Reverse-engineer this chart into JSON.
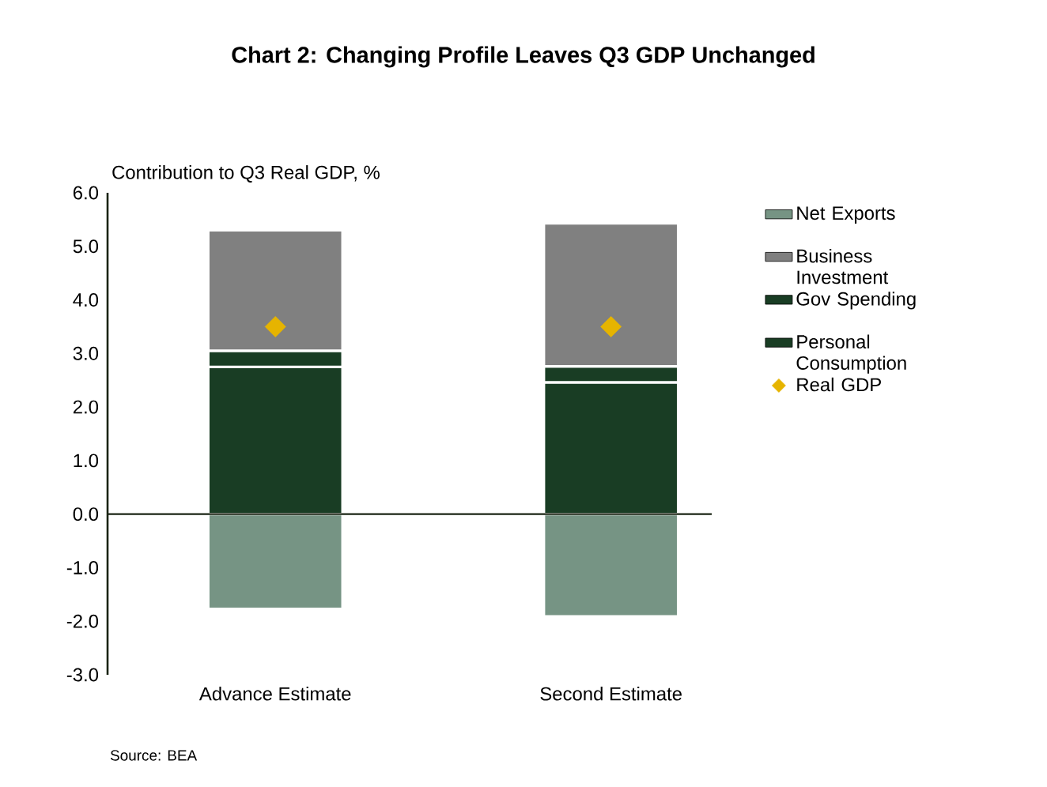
{
  "chart_data": {
    "type": "bar",
    "stacked": true,
    "title": "Chart 2: Changing Profile Leaves Q3 GDP Unchanged",
    "ylabel": "Contribution to  Q3 Real GDP, %",
    "categories": [
      "Advance Estimate",
      "Second Estimate"
    ],
    "series": [
      {
        "name": "Personal Consumption",
        "color": "#193d24",
        "values": [
          2.75,
          2.46
        ]
      },
      {
        "name": "Gov Spending",
        "color": "#193d24",
        "values": [
          0.3,
          0.3
        ]
      },
      {
        "name": "Business Investment",
        "color": "#808080",
        "values": [
          2.25,
          2.67
        ]
      },
      {
        "name": "Net Exports",
        "color": "#769484",
        "values": [
          -1.77,
          -1.91
        ]
      },
      {
        "name": "Real GDP",
        "type": "scatter",
        "marker": "diamond",
        "color": "#e6b400",
        "x": [
          "Advance Estimate",
          "Second Estimate"
        ],
        "values": [
          3.5,
          3.5
        ]
      }
    ],
    "ylim": [
      -3,
      6
    ],
    "yticks": [
      {
        "value": -3,
        "label": "-3.0"
      },
      {
        "value": -2,
        "label": "-2.0"
      },
      {
        "value": -1,
        "label": "-1.0"
      },
      {
        "value": 0,
        "label": "0.0"
      },
      {
        "value": 1,
        "label": "1.0"
      },
      {
        "value": 2,
        "label": "2.0"
      },
      {
        "value": 3,
        "label": "3.0"
      },
      {
        "value": 4,
        "label": "4.0"
      },
      {
        "value": 5,
        "label": "5.0"
      },
      {
        "value": 6,
        "label": "6.0"
      }
    ],
    "legend": "right",
    "annotations": [
      "Source: BEA"
    ]
  }
}
